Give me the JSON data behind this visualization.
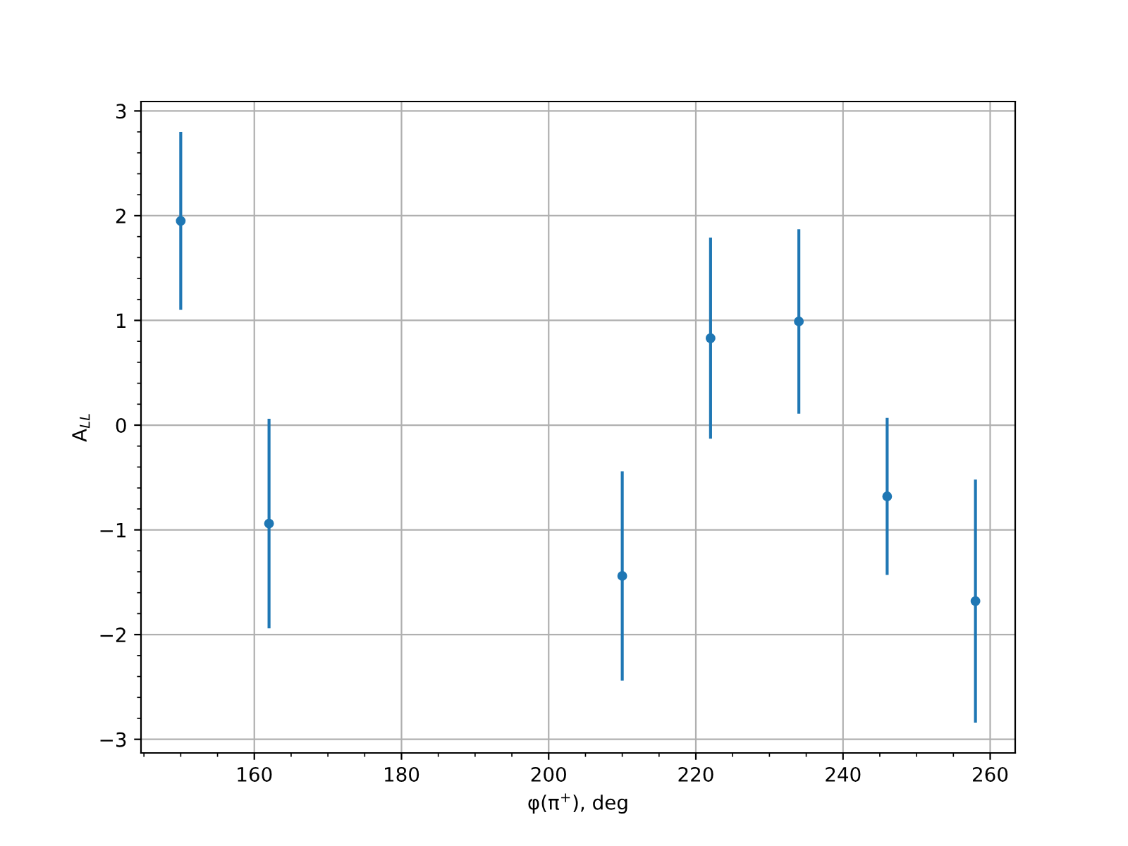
{
  "chart_data": {
    "type": "scatter",
    "xlabel": "φ(π$^{+}$), deg",
    "ylabel": "A$_{LL}$",
    "x": [
      150,
      162,
      210,
      222,
      234,
      246,
      258
    ],
    "series": [
      {
        "color": "#1f77b4",
        "values": [
          1.95,
          -0.94,
          -1.44,
          0.83,
          0.99,
          -0.68,
          -1.68
        ],
        "errors": [
          0.85,
          1.0,
          1.0,
          0.96,
          0.88,
          0.75,
          1.16
        ]
      }
    ],
    "xlim": [
      144.6,
      263.4
    ],
    "ylim": [
      -3.13,
      3.09
    ],
    "xticks": [
      160,
      180,
      200,
      220,
      240,
      260
    ],
    "yticks": [
      {
        "value": -3,
        "label": "−3"
      },
      {
        "value": -2,
        "label": "−2"
      },
      {
        "value": -1,
        "label": "−1"
      },
      0,
      1,
      2,
      3
    ],
    "grid": true,
    "marker": "circle"
  }
}
